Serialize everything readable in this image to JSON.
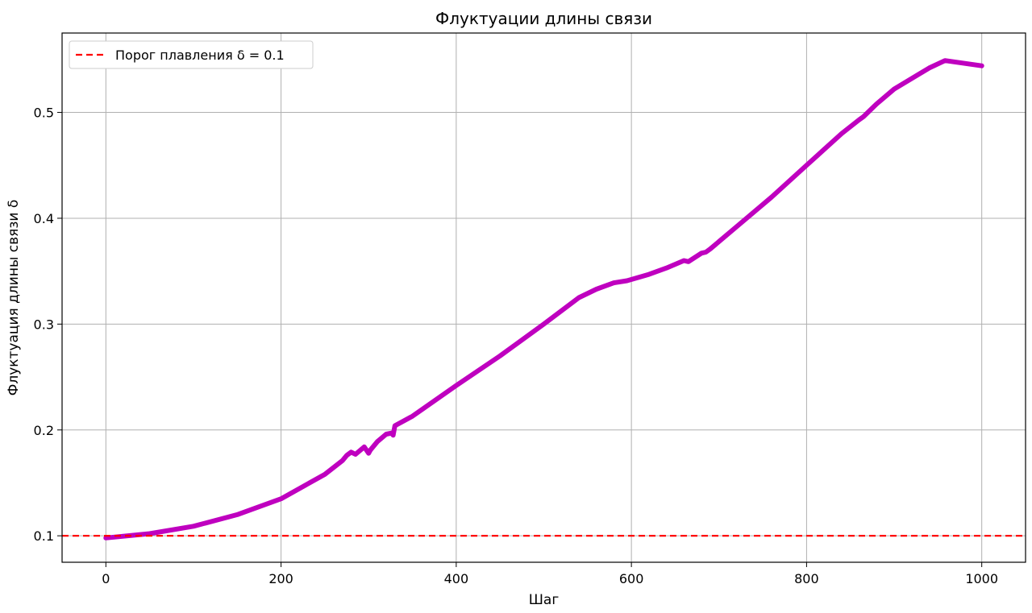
{
  "chart_data": {
    "type": "line",
    "title": "Флуктуации длины связи",
    "xlabel": "Шаг",
    "ylabel": "Флуктуация длины связи δ",
    "xlim": [
      -50,
      1050
    ],
    "ylim": [
      0.075,
      0.575
    ],
    "xticks": [
      0,
      200,
      400,
      600,
      800,
      1000
    ],
    "yticks": [
      0.1,
      0.2,
      0.3,
      0.4,
      0.5
    ],
    "xtick_labels": [
      "0",
      "200",
      "400",
      "600",
      "800",
      "1000"
    ],
    "ytick_labels": [
      "0.1",
      "0.2",
      "0.3",
      "0.4",
      "0.5"
    ],
    "grid": true,
    "legend_position": "top-left",
    "series": [
      {
        "name": "",
        "color": "#bf00bf",
        "style": "solid",
        "x": [
          0,
          50,
          100,
          150,
          200,
          250,
          270,
          275,
          280,
          285,
          295,
          300,
          302,
          310,
          320,
          326,
          328,
          330,
          350,
          400,
          450,
          500,
          540,
          560,
          580,
          595,
          620,
          640,
          660,
          665,
          680,
          685,
          690,
          720,
          760,
          800,
          840,
          860,
          865,
          880,
          900,
          940,
          958,
          1000
        ],
        "y": [
          0.098,
          0.102,
          0.109,
          0.12,
          0.135,
          0.158,
          0.171,
          0.176,
          0.179,
          0.177,
          0.184,
          0.178,
          0.181,
          0.189,
          0.196,
          0.197,
          0.195,
          0.204,
          0.213,
          0.242,
          0.27,
          0.3,
          0.325,
          0.333,
          0.339,
          0.341,
          0.347,
          0.353,
          0.36,
          0.359,
          0.367,
          0.368,
          0.371,
          0.392,
          0.42,
          0.45,
          0.48,
          0.493,
          0.496,
          0.508,
          0.522,
          0.542,
          0.549,
          0.544
        ]
      },
      {
        "name": "Порог плавления δ = 0.1",
        "color": "#ff0000",
        "style": "dashed",
        "y_constant": 0.1
      }
    ]
  }
}
